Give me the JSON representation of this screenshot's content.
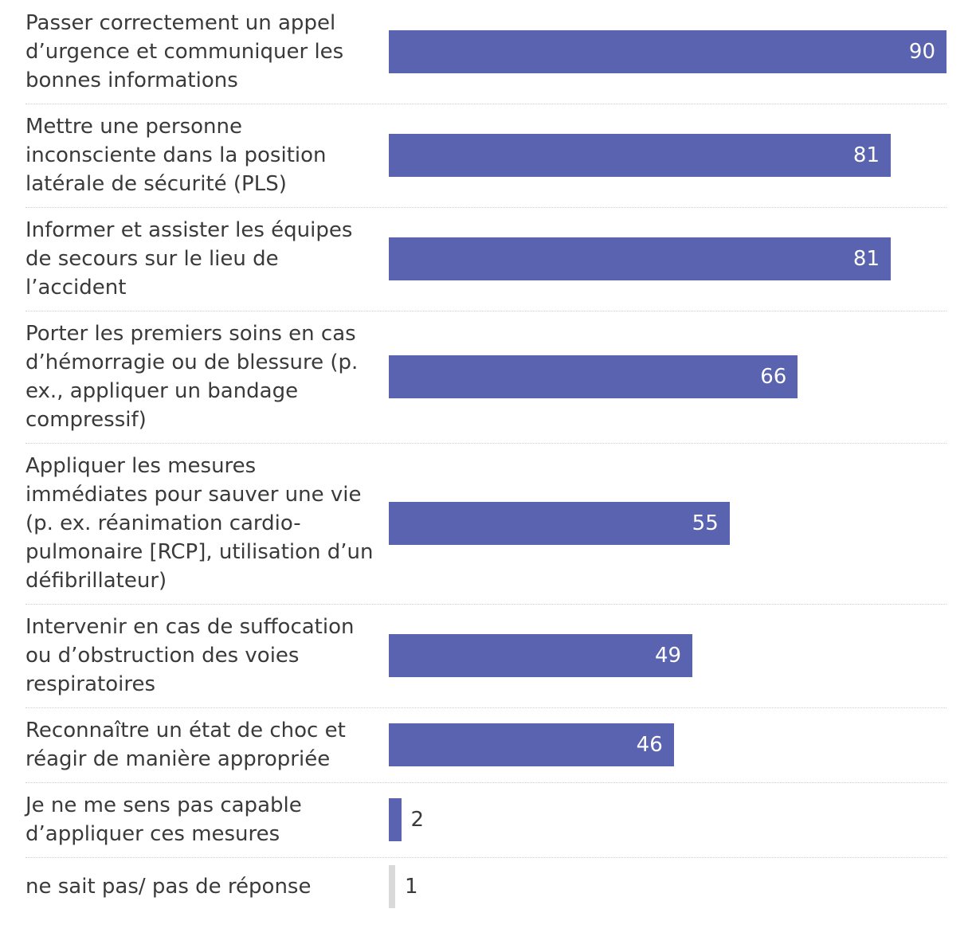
{
  "chart_data": {
    "type": "bar",
    "orientation": "horizontal",
    "title": "",
    "xlabel": "",
    "ylabel": "",
    "xlim": [
      0,
      90
    ],
    "grid": false,
    "legend": "none",
    "bar_color": "#5a63b0",
    "muted_color": "#d9d9d9",
    "categories": [
      "Passer correctement un appel d’urgence et communiquer les bonnes informations",
      "Mettre une personne inconsciente dans la position latérale de sécurité (PLS)",
      "Informer et assister les équipes de secours sur le lieu de l’accident",
      "Porter les premiers soins en cas d’hémorragie ou de blessure (p. ex., appliquer un bandage compressif)",
      "Appliquer les mesures immédiates pour sauver une vie (p. ex. réanimation cardio-pulmonaire [RCP], utilisation d’un défibrillateur)",
      "Intervenir en cas de suffocation ou d’obstruction des voies respiratoires",
      "Reconnaître un état de choc et réagir de manière appropriée",
      "Je ne me sens pas capable d’appliquer ces mesures",
      "ne sait pas/ pas de réponse"
    ],
    "values": [
      90,
      81,
      81,
      66,
      55,
      49,
      46,
      2,
      1
    ],
    "value_labels": [
      "90",
      "81",
      "81",
      "66",
      "55",
      "49",
      "46",
      "2",
      "1"
    ],
    "muted": [
      false,
      false,
      false,
      false,
      false,
      false,
      false,
      false,
      true
    ]
  }
}
